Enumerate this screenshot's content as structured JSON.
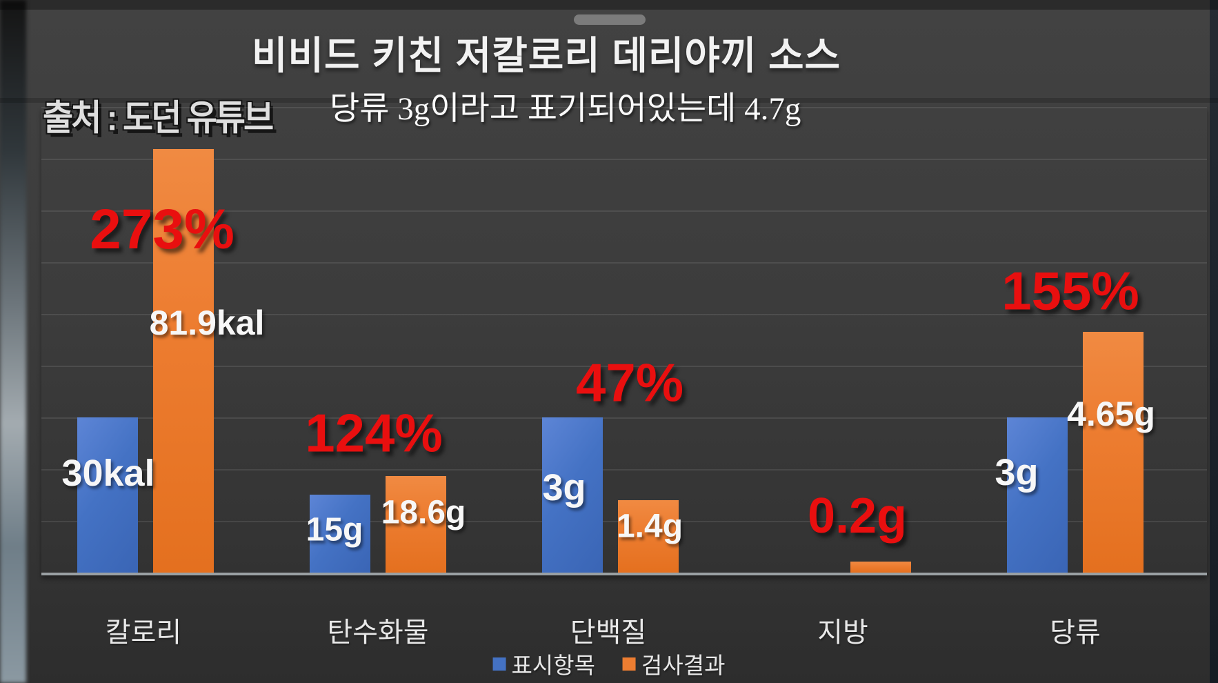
{
  "title": "비비드 키친 저칼로리 데리야끼 소스",
  "watermark": "출처 : 도던 유튜브",
  "subtitle": "당류 3g이라고 표기되어있는데 4.7g",
  "chart_data": {
    "type": "bar",
    "title": "비비드 키친 저칼로리 데리야끼 소스",
    "categories": [
      "칼로리",
      "탄수화물",
      "단백질",
      "지방",
      "당류"
    ],
    "series": [
      {
        "name": "표시항목",
        "color": "#4472c4",
        "values": [
          30,
          15,
          3,
          0,
          3
        ],
        "bar_labels": [
          "30kal",
          "15g",
          "3g",
          "",
          "3g"
        ]
      },
      {
        "name": "검사결과",
        "color": "#ed7d31",
        "values": [
          81.9,
          18.6,
          1.4,
          0.2,
          4.65
        ],
        "bar_labels": [
          "81.9kal",
          "18.6g",
          "1.4g",
          "",
          "4.65g"
        ]
      }
    ],
    "annotations": [
      {
        "category": "칼로리",
        "text": "273%"
      },
      {
        "category": "탄수화물",
        "text": "124%"
      },
      {
        "category": "단백질",
        "text": "47%"
      },
      {
        "category": "지방",
        "text": "0.2g"
      },
      {
        "category": "당류",
        "text": "155%"
      }
    ],
    "grid": true,
    "legend_position": "bottom-center",
    "display_heights_pct": {
      "표시항목": [
        33.3,
        16.7,
        33.3,
        0,
        33.3
      ],
      "검사결과": [
        91.0,
        20.7,
        15.6,
        2.3,
        51.7
      ]
    }
  },
  "legend": {
    "items": [
      {
        "label": "표시항목",
        "color": "#4472c4"
      },
      {
        "label": "검사결과",
        "color": "#ed7d31"
      }
    ]
  },
  "colors": {
    "background": "#3a3a3a",
    "bar_blue": "#4472c4",
    "bar_orange": "#ed7d31",
    "annotation_red": "#e90f0f",
    "axis_line": "#9aa0a3",
    "text_light": "#f2f2f2"
  }
}
